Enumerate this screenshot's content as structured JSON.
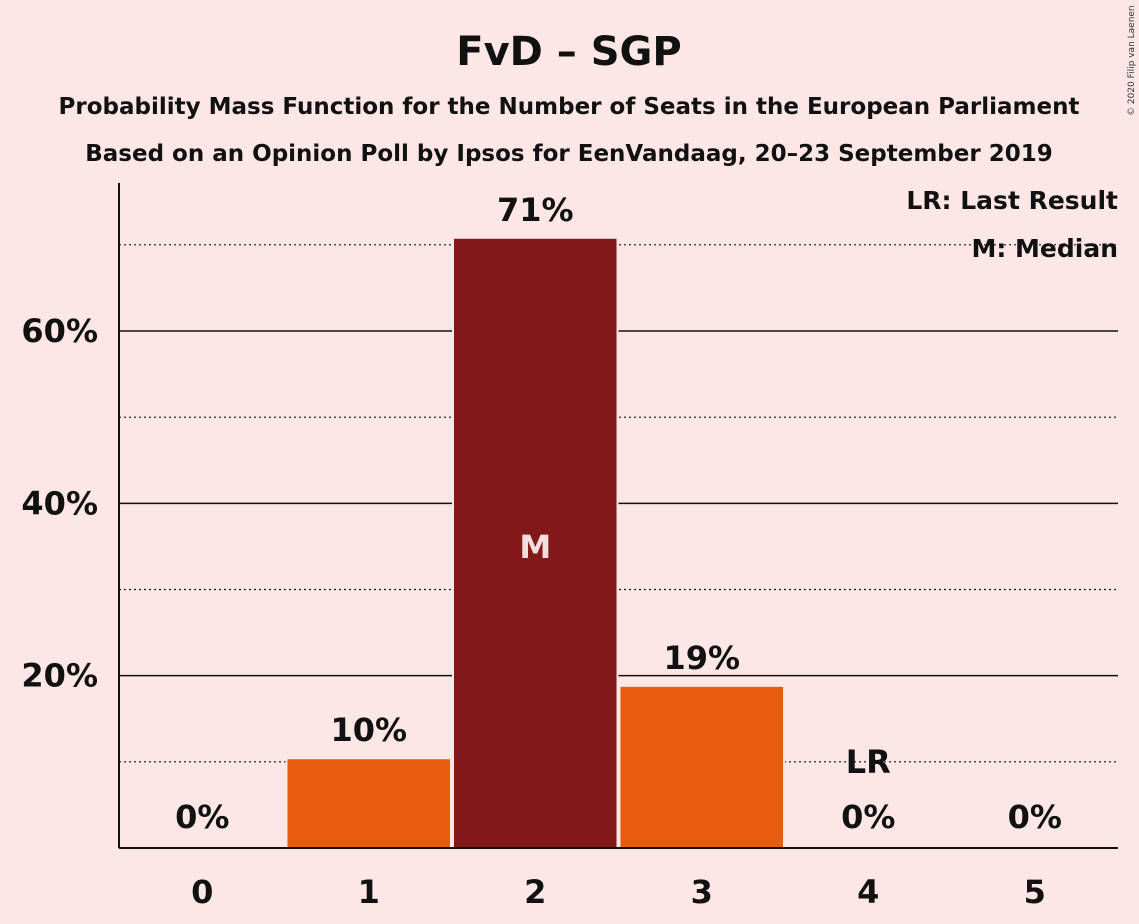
{
  "title": "FvD – SGP",
  "subtitle_1": "Probability Mass Function for the Number of Seats in the European Parliament",
  "subtitle_2": "Based on an Opinion Poll by Ipsos for EenVandaag, 20–23 September 2019",
  "copyright": "© 2020 Filip van Laenen",
  "legend": {
    "last_result": "LR: Last Result",
    "median": "M: Median"
  },
  "colors": {
    "background": "#fce6e6",
    "bar": "#e85d0d",
    "median_bar": "#831818",
    "axis": "#111111"
  },
  "chart_data": {
    "type": "bar",
    "categories": [
      "0",
      "1",
      "2",
      "3",
      "4",
      "5"
    ],
    "values": [
      0,
      10.3,
      70.7,
      18.7,
      0,
      0
    ],
    "data_labels": [
      "0%",
      "10%",
      "71%",
      "19%",
      "0%",
      "0%"
    ],
    "median_index": 2,
    "median_marker": "M",
    "last_result_index": 4,
    "last_result_marker": "LR",
    "ylim": [
      0,
      77
    ],
    "yticks": [
      20,
      40,
      60
    ],
    "ytick_labels": [
      "20%",
      "40%",
      "60%"
    ],
    "minor_gridlines": [
      10,
      30,
      50,
      70
    ],
    "grid": true,
    "legend_position": "top-right"
  }
}
